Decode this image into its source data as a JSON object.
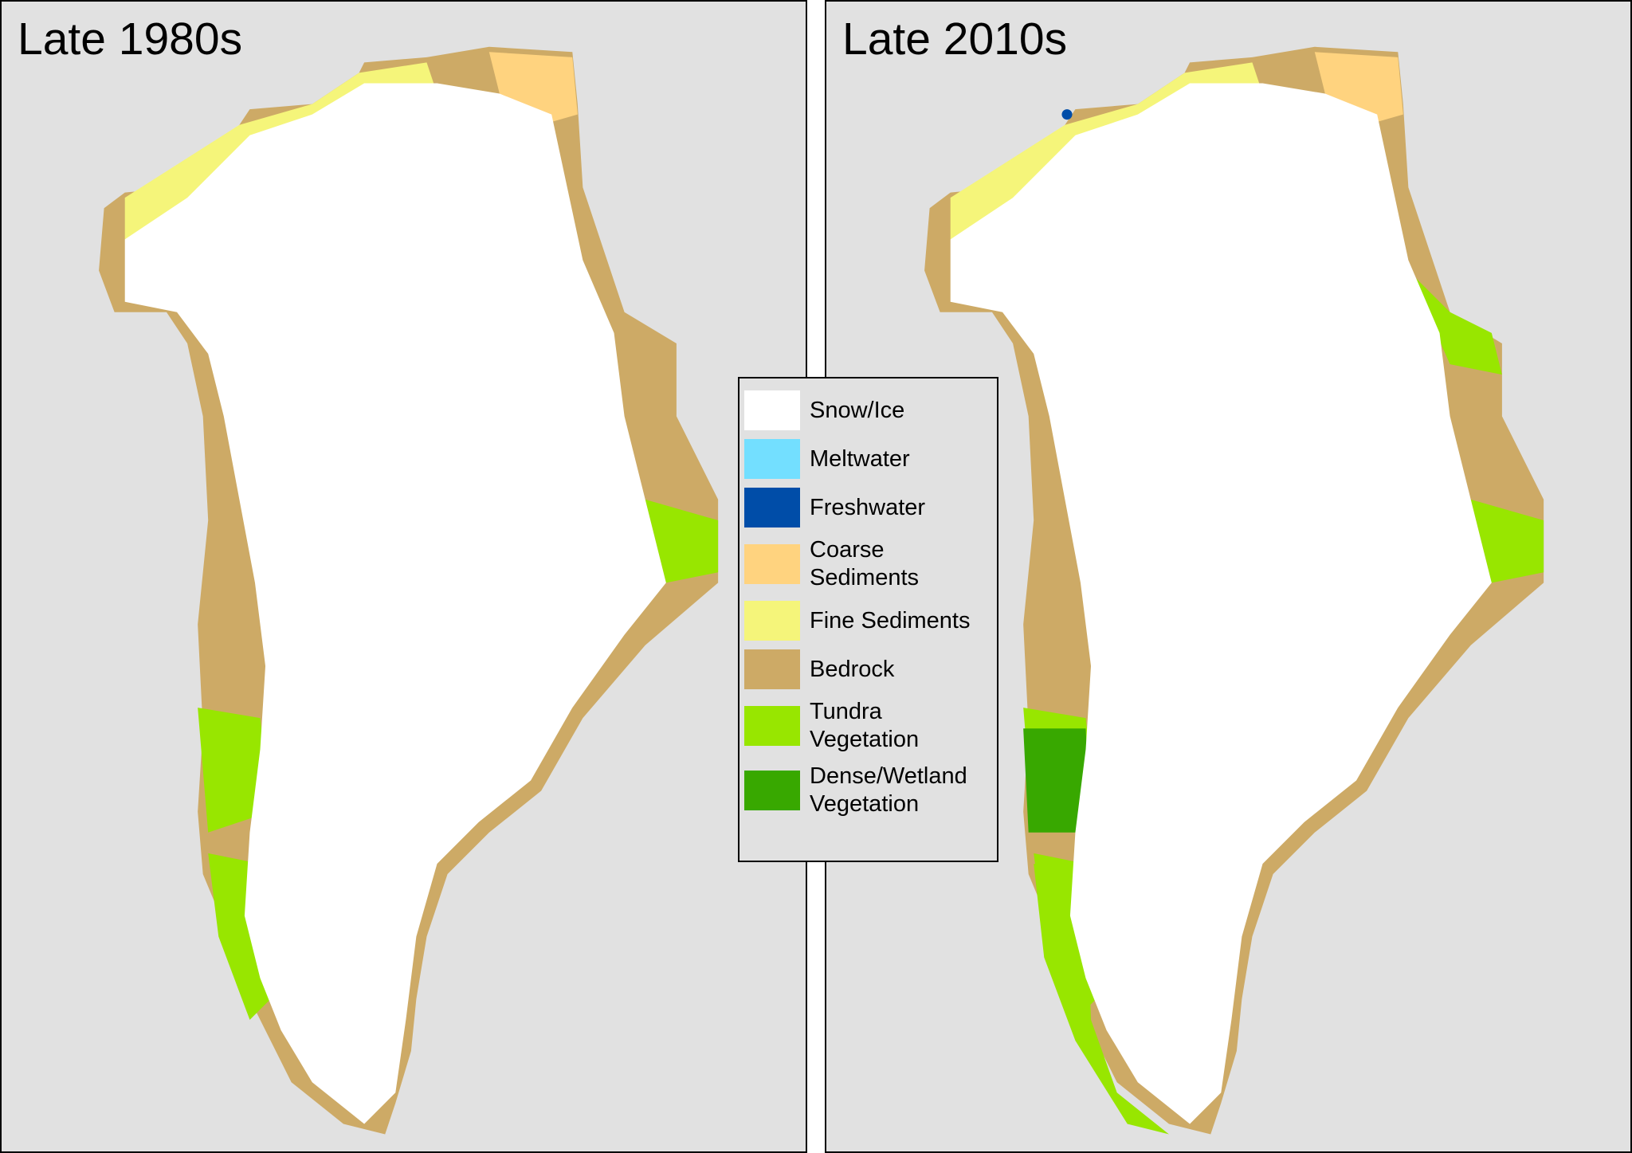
{
  "panels": [
    {
      "title": "Late 1980s"
    },
    {
      "title": "Late 2010s"
    }
  ],
  "legend": [
    {
      "label": "Snow/Ice",
      "color": "#ffffff"
    },
    {
      "label": "Meltwater",
      "color": "#73dfff"
    },
    {
      "label": "Freshwater",
      "color": "#004da8"
    },
    {
      "label": "Coarse\nSediments",
      "color": "#ffd37f"
    },
    {
      "label": "Fine Sediments",
      "color": "#f5f57a"
    },
    {
      "label": "Bedrock",
      "color": "#cdaa66"
    },
    {
      "label": "Tundra\nVegetation",
      "color": "#98e600"
    },
    {
      "label": "Dense/Wetland\nVegetation",
      "color": "#38a800"
    }
  ]
}
